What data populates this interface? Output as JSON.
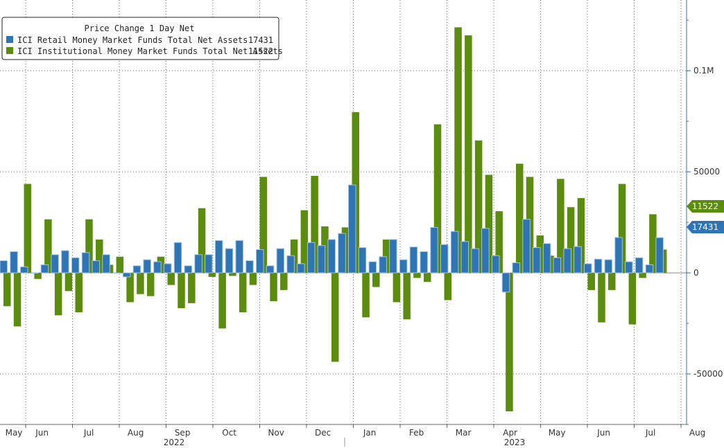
{
  "chart_data": {
    "type": "bar",
    "title": "Price Change 1 Day Net",
    "grid": true,
    "legend_position": "top-left",
    "y_axis_side": "right",
    "ylim": [
      -75000,
      135000
    ],
    "y_ticks": [
      {
        "value": 100000,
        "label": "0.1M"
      },
      {
        "value": 50000,
        "label": "50000"
      },
      {
        "value": 0,
        "label": "0"
      },
      {
        "value": -50000,
        "label": "-50000"
      }
    ],
    "x_month_labels": [
      "May",
      "Jun",
      "Jul",
      "Aug",
      "Sep",
      "Oct",
      "Nov",
      "Dec",
      "Jan",
      "Feb",
      "Mar",
      "Apr",
      "May",
      "Jun",
      "Jul",
      "Aug"
    ],
    "x_year_labels": [
      "2022",
      "2023"
    ],
    "series": [
      {
        "name": "ICI Retail Money Market Funds Total Net Assets",
        "last_value": "17431",
        "color": "#2f74b5",
        "values": [
          6000,
          10500,
          3000,
          0,
          4000,
          9000,
          11000,
          7500,
          10000,
          6000,
          9000,
          0,
          -2000,
          3500,
          6500,
          5500,
          4500,
          15000,
          3500,
          9000,
          9000,
          16000,
          12000,
          16000,
          6000,
          11500,
          3500,
          12000,
          8500,
          4500,
          15000,
          13500,
          16500,
          19500,
          43500,
          12500,
          5500,
          8000,
          16500,
          6500,
          12800,
          10500,
          22500,
          14000,
          20500,
          15500,
          12000,
          22000,
          8500,
          -9500,
          5000,
          26500,
          12500,
          14500,
          7500,
          12000,
          13000,
          4500,
          6800,
          6500,
          17500,
          5500,
          7500,
          4000,
          17431
        ]
      },
      {
        "name": "ICI Institutional Money Market Funds Total Net Assets",
        "last_value": "11522",
        "color": "#5b8c0e",
        "values": [
          -16500,
          -26500,
          44000,
          -3000,
          26500,
          -21000,
          -9000,
          -19500,
          26500,
          16500,
          4000,
          8000,
          -14500,
          -10500,
          -11500,
          8000,
          -6000,
          -17500,
          -15000,
          32000,
          -2000,
          -27500,
          -1500,
          -19500,
          -6000,
          47500,
          -14000,
          -8500,
          16500,
          31000,
          48000,
          23000,
          -44000,
          22500,
          79500,
          -22000,
          -7000,
          16500,
          -14500,
          -23000,
          -2500,
          -4500,
          73500,
          -13500,
          121500,
          117500,
          65500,
          48500,
          30500,
          -68500,
          54000,
          47500,
          18500,
          8500,
          46500,
          32500,
          37000,
          -8500,
          -24500,
          -8500,
          44000,
          -25500,
          -2500,
          29000,
          11522
        ]
      }
    ]
  }
}
